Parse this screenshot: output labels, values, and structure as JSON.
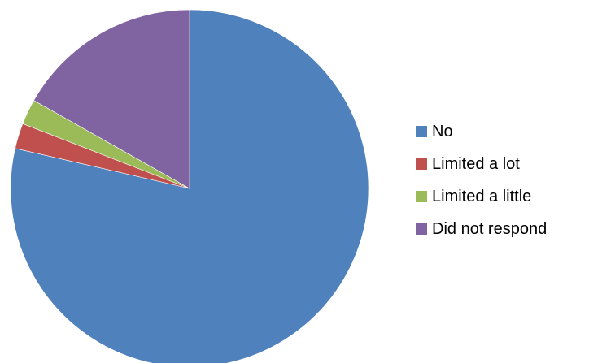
{
  "chart_data": {
    "type": "pie",
    "slices": [
      {
        "label": "No",
        "value": 78.6,
        "color": "#4F81BD"
      },
      {
        "label": "Limited a lot",
        "value": 2.3,
        "color": "#C0504D"
      },
      {
        "label": "Limited a little",
        "value": 2.3,
        "color": "#9BBB59"
      },
      {
        "label": "Did not respond",
        "value": 16.8,
        "color": "#8064A2"
      }
    ],
    "start_angle_deg": 0,
    "direction": "clockwise",
    "legend_position": "right"
  }
}
